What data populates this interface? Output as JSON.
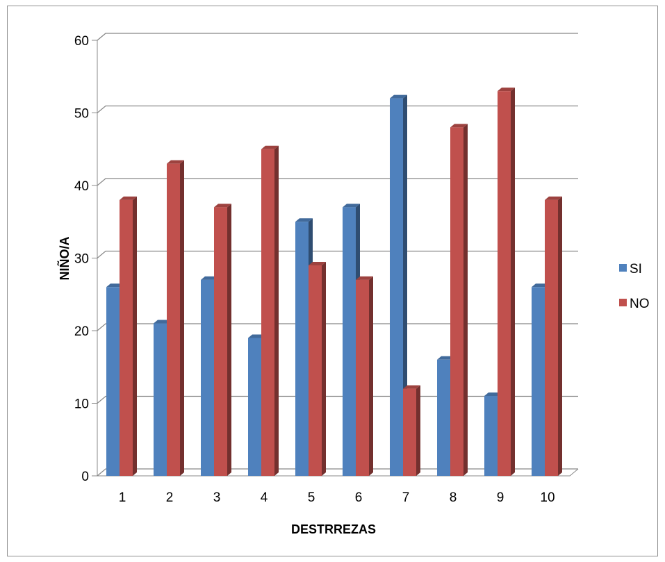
{
  "chart_data": {
    "type": "bar",
    "title": "",
    "xlabel": "DESTRREZAS",
    "ylabel": "NIÑO/A",
    "ylim": [
      0,
      60
    ],
    "yticks": [
      "0",
      "10",
      "20",
      "30",
      "40",
      "50",
      "60"
    ],
    "categories": [
      "1",
      "2",
      "3",
      "4",
      "5",
      "6",
      "7",
      "8",
      "9",
      "10"
    ],
    "series": [
      {
        "name": "SI",
        "values": [
          26,
          21,
          27,
          19,
          35,
          37,
          52,
          16,
          11,
          26
        ],
        "color": "#4f81bd"
      },
      {
        "name": "NO",
        "values": [
          38,
          43,
          37,
          45,
          29,
          27,
          12,
          48,
          53,
          38
        ],
        "color": "#c0504d"
      }
    ],
    "grid": true,
    "legend": "right",
    "style": "3d-clustered-column"
  }
}
